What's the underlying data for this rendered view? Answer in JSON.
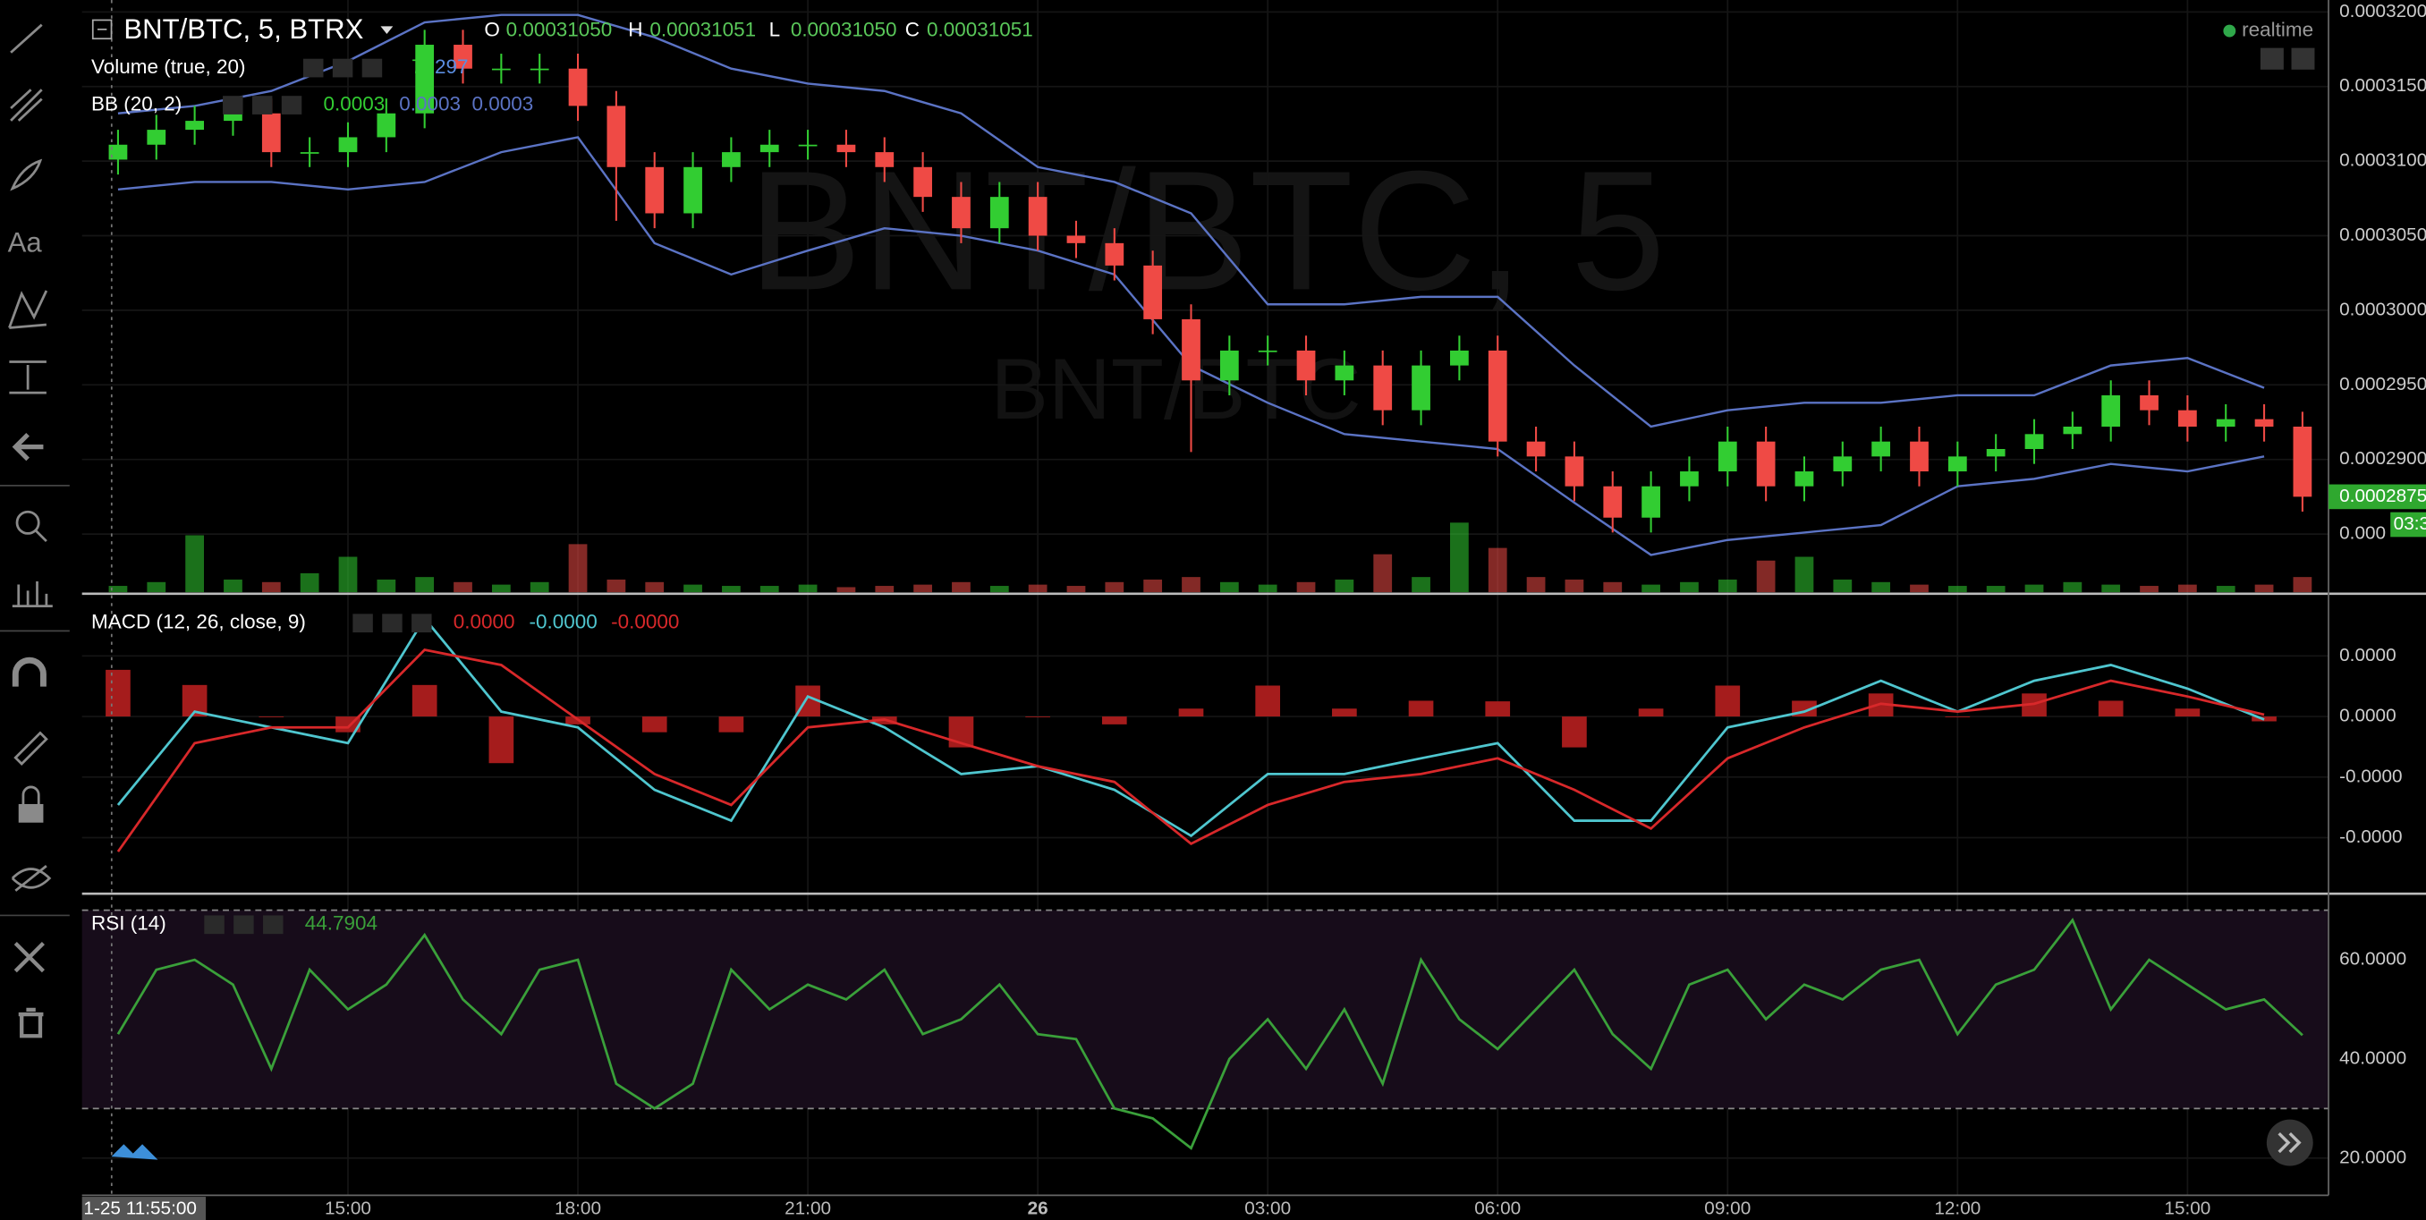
{
  "toolbar": {
    "text_tool": "Aa"
  },
  "header": {
    "symbol": "BNT/BTC, 5, BTRX",
    "ohlc": [
      {
        "label": "O",
        "value": "0.00031050"
      },
      {
        "label": "H",
        "value": "0.00031051"
      },
      {
        "label": "L",
        "value": "0.00031050"
      },
      {
        "label": "C",
        "value": "0.00031051"
      }
    ],
    "realtime": "realtime"
  },
  "watermark": {
    "title": "BNT/BTC, 5",
    "subtitle": "BNT/BTC"
  },
  "chart_data": [
    {
      "type": "candlestick",
      "title": "BNT/BTC, 5, BTRX",
      "up_color": "#32cd32",
      "down_color": "#ef4a45",
      "indicators": [
        {
          "label": "Volume (true, 20)",
          "readout": [
            {
              "text": "7",
              "color": "#32cd32"
            },
            {
              "text": "297",
              "color": "#5b8de0"
            }
          ]
        },
        {
          "label": "BB (20, 2)",
          "readout": [
            {
              "text": "0.0003",
              "color": "#32cd32"
            },
            {
              "text": "0.0003",
              "color": "#5b73c4"
            },
            {
              "text": "0.0003",
              "color": "#5b73c4"
            }
          ]
        }
      ],
      "x": [
        12,
        12.5,
        13,
        13.5,
        14,
        14.5,
        15,
        15.5,
        16,
        16.5,
        17,
        17.5,
        18,
        18.5,
        19,
        19.5,
        20,
        20.5,
        21,
        21.5,
        22,
        22.5,
        23,
        23.5,
        24,
        24.5,
        25,
        25.5,
        26,
        26.5,
        27,
        27.5,
        28,
        28.5,
        29,
        29.5,
        30,
        30.5,
        31,
        31.5,
        32,
        32.5,
        33,
        33.5,
        34,
        34.5,
        35,
        35.5,
        36,
        36.5,
        37,
        37.5,
        38,
        38.5,
        39,
        39.5,
        40,
        40.5
      ],
      "open": [
        0.0003101,
        0.0003111,
        0.0003121,
        0.0003127,
        0.0003132,
        0.0003106,
        0.0003106,
        0.0003116,
        0.0003132,
        0.0003178,
        0.0003162,
        0.0003162,
        0.0003162,
        0.0003137,
        0.0003096,
        0.0003065,
        0.0003096,
        0.0003106,
        0.0003111,
        0.0003111,
        0.0003106,
        0.0003096,
        0.0003076,
        0.0003055,
        0.0003076,
        0.000305,
        0.0003045,
        0.000303,
        0.0002994,
        0.0002953,
        0.0002973,
        0.0002973,
        0.0002953,
        0.0002963,
        0.0002933,
        0.0002963,
        0.0002973,
        0.0002912,
        0.0002902,
        0.0002882,
        0.0002861,
        0.0002882,
        0.0002892,
        0.0002912,
        0.0002882,
        0.0002892,
        0.0002902,
        0.0002912,
        0.0002892,
        0.0002902,
        0.0002907,
        0.0002917,
        0.0002922,
        0.0002943,
        0.0002933,
        0.0002922,
        0.0002927,
        0.0002922
      ],
      "high": [
        0.0003121,
        0.0003131,
        0.0003137,
        0.0003142,
        0.0003142,
        0.0003116,
        0.0003126,
        0.0003142,
        0.0003188,
        0.0003188,
        0.0003172,
        0.0003172,
        0.0003172,
        0.0003147,
        0.0003106,
        0.0003106,
        0.0003116,
        0.0003121,
        0.0003121,
        0.0003121,
        0.0003116,
        0.0003106,
        0.0003086,
        0.0003086,
        0.0003086,
        0.000306,
        0.0003055,
        0.000304,
        0.0003004,
        0.0002983,
        0.0002983,
        0.0002983,
        0.0002973,
        0.0002973,
        0.0002973,
        0.0002983,
        0.0002983,
        0.0002922,
        0.0002912,
        0.0002892,
        0.0002892,
        0.0002902,
        0.0002922,
        0.0002922,
        0.0002902,
        0.0002912,
        0.0002922,
        0.0002922,
        0.0002912,
        0.0002917,
        0.0002927,
        0.0002932,
        0.0002953,
        0.0002953,
        0.0002943,
        0.0002937,
        0.0002937,
        0.0002932
      ],
      "low": [
        0.0003091,
        0.0003101,
        0.0003111,
        0.0003117,
        0.0003096,
        0.0003096,
        0.0003096,
        0.0003106,
        0.0003122,
        0.0003152,
        0.0003152,
        0.0003152,
        0.0003127,
        0.000306,
        0.0003055,
        0.0003055,
        0.0003086,
        0.0003096,
        0.0003101,
        0.0003096,
        0.0003086,
        0.0003066,
        0.0003045,
        0.0003045,
        0.000304,
        0.0003035,
        0.000302,
        0.0002984,
        0.0002905,
        0.0002943,
        0.0002963,
        0.0002943,
        0.0002943,
        0.0002923,
        0.0002923,
        0.0002953,
        0.0002902,
        0.0002892,
        0.0002872,
        0.0002851,
        0.0002851,
        0.0002872,
        0.0002882,
        0.0002872,
        0.0002872,
        0.0002882,
        0.0002892,
        0.0002882,
        0.0002882,
        0.0002892,
        0.0002897,
        0.0002907,
        0.0002912,
        0.0002923,
        0.0002912,
        0.0002912,
        0.0002912,
        0.0002865
      ],
      "close": [
        0.0003111,
        0.0003121,
        0.0003127,
        0.0003132,
        0.0003106,
        0.0003106,
        0.0003116,
        0.0003132,
        0.0003178,
        0.0003162,
        0.0003162,
        0.0003162,
        0.0003137,
        0.0003096,
        0.0003065,
        0.0003096,
        0.0003106,
        0.0003111,
        0.0003111,
        0.0003106,
        0.0003096,
        0.0003076,
        0.0003055,
        0.0003076,
        0.000305,
        0.0003045,
        0.000303,
        0.0002994,
        0.0002953,
        0.0002973,
        0.0002973,
        0.0002953,
        0.0002963,
        0.0002933,
        0.0002963,
        0.0002973,
        0.0002912,
        0.0002902,
        0.0002882,
        0.0002861,
        0.0002882,
        0.0002892,
        0.0002912,
        0.0002882,
        0.0002892,
        0.0002902,
        0.0002912,
        0.0002892,
        0.0002902,
        0.0002907,
        0.0002917,
        0.0002922,
        0.0002943,
        0.0002933,
        0.0002922,
        0.0002927,
        0.0002922,
        0.0002875
      ],
      "volume": [
        5,
        8,
        45,
        10,
        8,
        15,
        28,
        10,
        12,
        8,
        6,
        8,
        38,
        10,
        8,
        6,
        5,
        5,
        6,
        4,
        5,
        6,
        8,
        5,
        6,
        5,
        8,
        10,
        12,
        8,
        6,
        8,
        10,
        30,
        12,
        55,
        35,
        12,
        10,
        8,
        6,
        8,
        10,
        25,
        28,
        10,
        8,
        6,
        5,
        5,
        6,
        8,
        6,
        5,
        6,
        5,
        6,
        12
      ],
      "bb": {
        "color": "#5b73c4",
        "x": [
          12,
          13,
          14,
          15,
          16,
          17,
          18,
          19,
          20,
          21,
          22,
          23,
          24,
          25,
          26,
          27,
          28,
          29,
          30,
          31,
          32,
          33,
          34,
          35,
          36,
          37,
          38,
          39,
          40
        ],
        "upper": [
          0.0003132,
          0.0003137,
          0.0003147,
          0.0003167,
          0.0003193,
          0.0003198,
          0.0003198,
          0.0003183,
          0.0003162,
          0.0003152,
          0.0003147,
          0.0003132,
          0.0003096,
          0.0003086,
          0.0003065,
          0.0003004,
          0.0003004,
          0.0003009,
          0.0003009,
          0.0002963,
          0.0002922,
          0.0002933,
          0.0002938,
          0.0002938,
          0.0002943,
          0.0002943,
          0.0002963,
          0.0002968,
          0.0002948
        ],
        "lower": [
          0.0003081,
          0.0003086,
          0.0003086,
          0.0003081,
          0.0003086,
          0.0003106,
          0.0003116,
          0.0003045,
          0.0003024,
          0.000304,
          0.0003055,
          0.000305,
          0.000304,
          0.0003024,
          0.0002963,
          0.0002938,
          0.0002917,
          0.0002912,
          0.0002907,
          0.0002871,
          0.0002836,
          0.0002846,
          0.0002851,
          0.0002856,
          0.0002882,
          0.0002887,
          0.0002897,
          0.0002892,
          0.0002902
        ]
      },
      "ylim": [
        0.0002811,
        0.0003208
      ],
      "yticks": [
        {
          "value": 0.00032,
          "label": "0.0003200"
        },
        {
          "value": 0.000315,
          "label": "0.0003150"
        },
        {
          "value": 0.00031,
          "label": "0.0003100"
        },
        {
          "value": 0.000305,
          "label": "0.0003050"
        },
        {
          "value": 0.0003,
          "label": "0.0003000"
        },
        {
          "value": 0.000295,
          "label": "0.0002950"
        },
        {
          "value": 0.00029,
          "label": "0.0002900"
        },
        {
          "value": 0.000285,
          "label": "0.000"
        }
      ],
      "last_price": {
        "value": 0.0002875,
        "label": "0.0002875"
      },
      "countdown": "03:3",
      "grid": true
    },
    {
      "type": "line",
      "title": "MACD (12, 26, close, 9)",
      "readout": [
        {
          "text": "0.0000",
          "color": "#d8282a"
        },
        {
          "text": "-0.0000",
          "color": "#4fc6cf"
        },
        {
          "text": "-0.0000",
          "color": "#d8282a"
        }
      ],
      "x": [
        12,
        13,
        14,
        15,
        16,
        17,
        18,
        19,
        20,
        21,
        22,
        23,
        24,
        25,
        26,
        27,
        28,
        29,
        30,
        31,
        32,
        33,
        34,
        35,
        36,
        37,
        38,
        39,
        40
      ],
      "series": [
        {
          "color": "#4fc6cf",
          "values": [
            -1.46e-06,
            8e-08,
            -1.8e-07,
            -4.4e-07,
            1.62e-06,
            8e-08,
            -1.8e-07,
            -1.21e-06,
            -1.72e-06,
            3.3e-07,
            -1.8e-07,
            -9.5e-07,
            -8.2e-07,
            -1.21e-06,
            -1.97e-06,
            -9.5e-07,
            -9.5e-07,
            -6.9e-07,
            -4.4e-07,
            -1.72e-06,
            -1.72e-06,
            -1.8e-07,
            8e-08,
            5.9e-07,
            8e-08,
            5.9e-07,
            8.5e-07,
            4.6e-07,
            -5e-08
          ]
        },
        {
          "color": "#d8282a",
          "values": [
            -2.23e-06,
            -4.4e-07,
            -1.8e-07,
            -1.8e-07,
            1.1e-06,
            8.5e-07,
            -5e-08,
            -9.5e-07,
            -1.46e-06,
            -1.8e-07,
            -5e-08,
            -4.4e-07,
            -8.2e-07,
            -1.08e-06,
            -2.1e-06,
            -1.46e-06,
            -1.08e-06,
            -9.5e-07,
            -6.9e-07,
            -1.21e-06,
            -1.85e-06,
            -6.9e-07,
            -1.8e-07,
            2.1e-07,
            8e-08,
            2.1e-07,
            5.9e-07,
            3.3e-07,
            3e-08
          ]
        }
      ],
      "histogram": {
        "color": "#a51c1c",
        "values": [
          7.7e-07,
          5.2e-07,
          0,
          -2.6e-07,
          5.2e-07,
          -7.7e-07,
          -1.3e-07,
          -2.6e-07,
          -2.6e-07,
          5.1e-07,
          -1.3e-07,
          -5.1e-07,
          0,
          -1.3e-07,
          1.3e-07,
          5.1e-07,
          1.3e-07,
          2.6e-07,
          2.5e-07,
          -5.1e-07,
          1.3e-07,
          5.1e-07,
          2.6e-07,
          3.8e-07,
          0,
          3.8e-07,
          2.6e-07,
          1.3e-07,
          -8e-08
        ]
      },
      "ylim": [
        -2.9e-06,
        2e-06
      ],
      "yticks": [
        {
          "value": 1e-06,
          "label": "0.0000"
        },
        {
          "value": 0,
          "label": "0.0000"
        },
        {
          "value": -1e-06,
          "label": "-0.0000"
        },
        {
          "value": -2e-06,
          "label": "-0.0000"
        }
      ],
      "grid": true
    },
    {
      "type": "line",
      "title": "RSI (14)",
      "x": [
        12,
        12.5,
        13,
        13.5,
        14,
        14.5,
        15,
        15.5,
        16,
        16.5,
        17,
        17.5,
        18,
        18.5,
        19,
        19.5,
        20,
        20.5,
        21,
        21.5,
        22,
        22.5,
        23,
        23.5,
        24,
        24.5,
        25,
        25.5,
        26,
        26.5,
        27,
        27.5,
        28,
        28.5,
        29,
        29.5,
        30,
        30.5,
        31,
        31.5,
        32,
        32.5,
        33,
        33.5,
        34,
        34.5,
        35,
        35.5,
        36,
        36.5,
        37,
        37.5,
        38,
        38.5,
        39,
        39.5,
        40,
        40.5
      ],
      "series": [
        {
          "color": "#3aa03a",
          "values": [
            45,
            58,
            60,
            55,
            38,
            58,
            50,
            55,
            65,
            52,
            45,
            58,
            60,
            35,
            30,
            35,
            58,
            50,
            55,
            52,
            58,
            45,
            48,
            55,
            45,
            44,
            30,
            28,
            22,
            40,
            48,
            38,
            50,
            35,
            60,
            48,
            42,
            50,
            58,
            45,
            38,
            55,
            58,
            48,
            55,
            52,
            58,
            60,
            45,
            55,
            58,
            68,
            50,
            60,
            55,
            50,
            52,
            44.7904
          ]
        }
      ],
      "band": [
        30,
        70
      ],
      "band_color": "#170c1a",
      "ylim": [
        12.5,
        72.7
      ],
      "yticks": [
        {
          "value": 60,
          "label": "60.0000"
        },
        {
          "value": 40,
          "label": "40.0000"
        },
        {
          "value": 20,
          "label": "20.0000"
        }
      ],
      "xlim": [
        11.53,
        40.84
      ],
      "xticks": [
        {
          "value": 15,
          "label": "15:00"
        },
        {
          "value": 18,
          "label": "18:00"
        },
        {
          "value": 21,
          "label": "21:00"
        },
        {
          "value": 24,
          "label": "26"
        },
        {
          "value": 27,
          "label": "03:00"
        },
        {
          "value": 30,
          "label": "06:00"
        },
        {
          "value": 33,
          "label": "09:00"
        },
        {
          "value": 36,
          "label": "12:00"
        },
        {
          "value": 39,
          "label": "15:00"
        }
      ],
      "crosshair": {
        "value": 11.9167,
        "label": "1-25 11:55:00"
      },
      "grid": true
    }
  ]
}
